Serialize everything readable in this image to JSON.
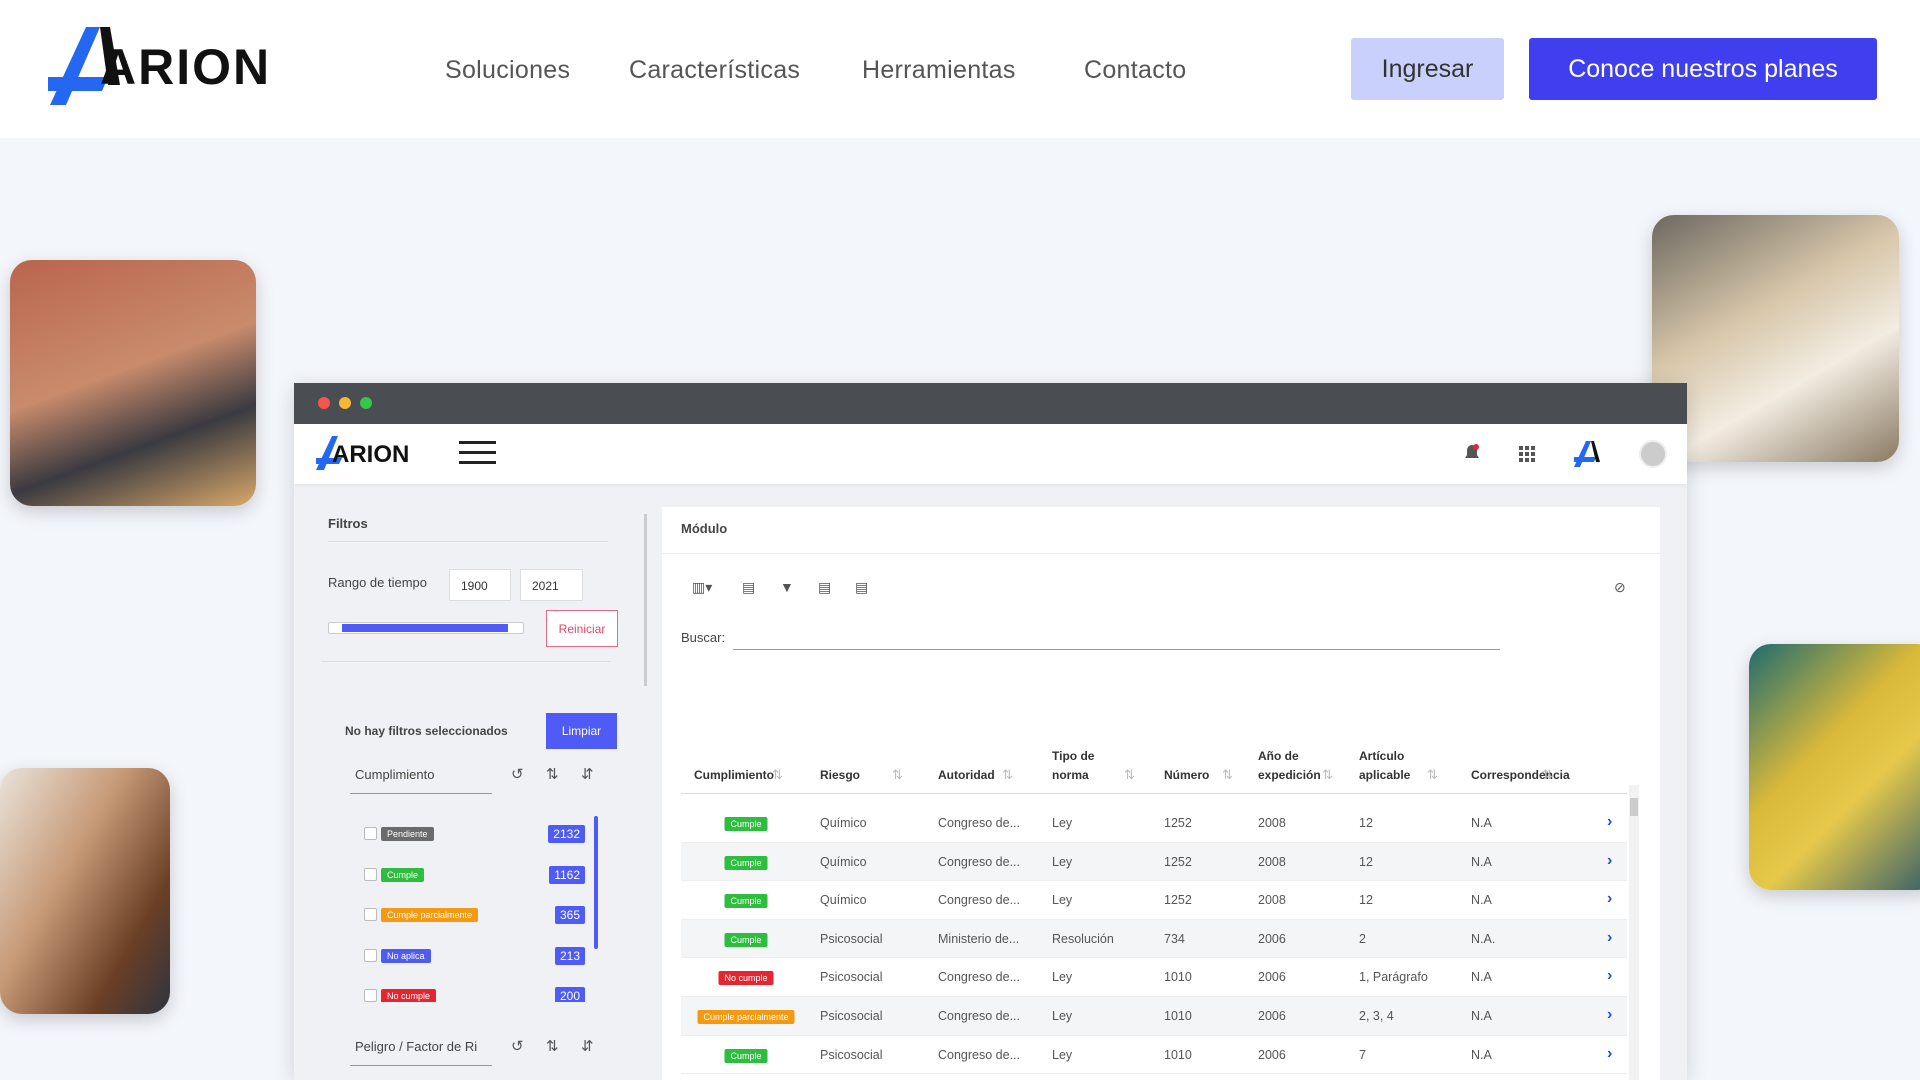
{
  "header": {
    "logo": "ARION",
    "nav": [
      "Soluciones",
      "Características",
      "Herramientas",
      "Contacto"
    ],
    "login": "Ingresar",
    "cta": "Conoce nuestros planes"
  },
  "app": {
    "logo": "ARION",
    "filters": {
      "title": "Filtros",
      "range_label": "Rango de tiempo",
      "range_start": "1900",
      "range_end": "2021",
      "reset": "Reiniciar",
      "none_selected": "No hay filtros seleccionados",
      "clear": "Limpiar",
      "group1": "Cumplimiento",
      "items": [
        {
          "label": "Pendiente",
          "color": "#6b6b6b",
          "count": "2132"
        },
        {
          "label": "Cumple",
          "color": "#2ebd3f",
          "count": "1162"
        },
        {
          "label": "Cumple parcialmente",
          "color": "#f39a12",
          "count": "365"
        },
        {
          "label": "No aplica",
          "color": "#4f5bf5",
          "count": "213"
        },
        {
          "label": "No cumple",
          "color": "#e52630",
          "count": "200"
        }
      ],
      "group2": "Peligro / Factor de Ri"
    },
    "module": {
      "title": "Módulo",
      "search": "Buscar:",
      "columns": [
        "Cumplimiento",
        "Riesgo",
        "Autoridad",
        "Tipo de norma",
        "Número",
        "Año de expedición",
        "Artículo aplicable",
        "Correspondencia"
      ],
      "rows": [
        [
          {
            "label": "Cumple",
            "color": "#2ebd3f"
          },
          "Químico",
          "Congreso de...",
          "Ley",
          "1252",
          "2008",
          "12",
          "N.A"
        ],
        [
          {
            "label": "Cumple",
            "color": "#2ebd3f"
          },
          "Químico",
          "Congreso de...",
          "Ley",
          "1252",
          "2008",
          "12",
          "N.A"
        ],
        [
          {
            "label": "Cumple",
            "color": "#2ebd3f"
          },
          "Químico",
          "Congreso de...",
          "Ley",
          "1252",
          "2008",
          "12",
          "N.A"
        ],
        [
          {
            "label": "Cumple",
            "color": "#2ebd3f"
          },
          "Psicosocial",
          "Ministerio de...",
          "Resolución",
          "734",
          "2006",
          "2",
          "N.A."
        ],
        [
          {
            "label": "No cumple",
            "color": "#e52630"
          },
          "Psicosocial",
          "Congreso de...",
          "Ley",
          "1010",
          "2006",
          "1, Parágrafo",
          "N.A"
        ],
        [
          {
            "label": "Cumple parcialmente",
            "color": "#f39a12"
          },
          "Psicosocial",
          "Congreso de...",
          "Ley",
          "1010",
          "2006",
          "2, 3, 4",
          "N.A"
        ],
        [
          {
            "label": "Cumple",
            "color": "#2ebd3f"
          },
          "Psicosocial",
          "Congreso de...",
          "Ley",
          "1010",
          "2006",
          "7",
          "N.A"
        ]
      ]
    }
  }
}
